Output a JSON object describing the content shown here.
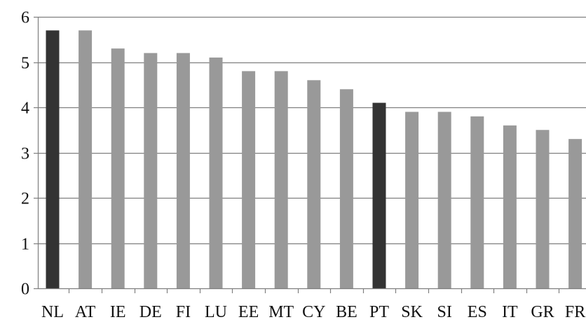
{
  "chart_data": {
    "type": "bar",
    "categories": [
      "NL",
      "AT",
      "IE",
      "DE",
      "FI",
      "LU",
      "EE",
      "MT",
      "CY",
      "BE",
      "PT",
      "SK",
      "SI",
      "ES",
      "IT",
      "GR",
      "FR"
    ],
    "values": [
      5.7,
      5.7,
      5.3,
      5.2,
      5.2,
      5.1,
      4.8,
      4.8,
      4.6,
      4.4,
      4.1,
      3.9,
      3.9,
      3.8,
      3.6,
      3.5,
      3.3
    ],
    "highlighted": [
      "NL",
      "PT"
    ],
    "title": "",
    "xlabel": "",
    "ylabel": "",
    "ylim": [
      0,
      6
    ],
    "yticks": [
      0,
      1,
      2,
      3,
      4,
      5,
      6
    ],
    "grid": true,
    "colors": {
      "bar": "#999999",
      "highlight": "#333333",
      "grid": "#7f7f7f",
      "axis": "#7f7f7f"
    }
  }
}
